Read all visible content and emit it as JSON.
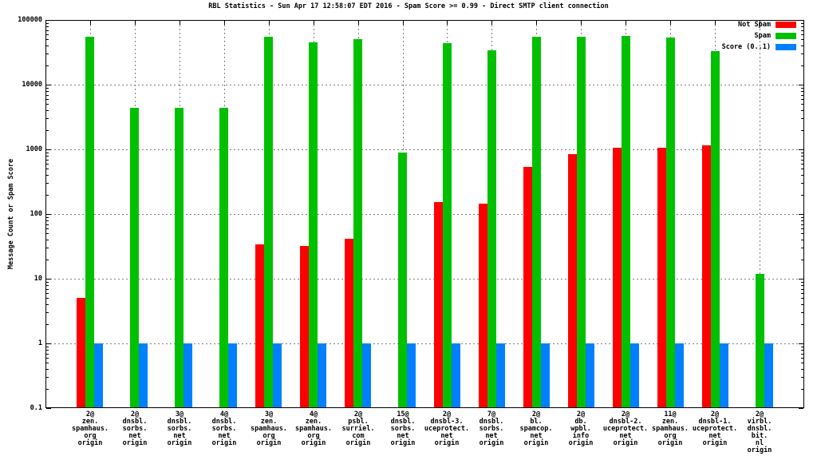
{
  "title": "RBL Statistics - Sun Apr 17 12:58:07 EDT 2016 - Spam Score >= 0.99 - Direct SMTP client connection",
  "chart_data": {
    "type": "bar",
    "y_scale": "log",
    "title": "RBL Statistics - Sun Apr 17 12:58:07 EDT 2016 - Spam Score >= 0.99 - Direct SMTP client connection",
    "ylabel": "Message Count or Spam Score",
    "xlabel": "",
    "ylim": [
      0.1,
      100000
    ],
    "ytick_labels": [
      "100000",
      "10000",
      "1000",
      "100",
      "10",
      "1",
      "0.1"
    ],
    "grid": true,
    "legend_position": "top-right-inside",
    "categories": [
      [
        "2@",
        "zen.",
        "spamhaus.",
        "org",
        "origin"
      ],
      [
        "2@",
        "dnsbl.",
        "sorbs.",
        "net",
        "origin"
      ],
      [
        "3@",
        "dnsbl.",
        "sorbs.",
        "net",
        "origin"
      ],
      [
        "4@",
        "dnsbl.",
        "sorbs.",
        "net",
        "origin"
      ],
      [
        "3@",
        "zen.",
        "spamhaus.",
        "org",
        "origin"
      ],
      [
        "4@",
        "zen.",
        "spamhaus.",
        "org",
        "origin"
      ],
      [
        "2@",
        "psbl.",
        "surriel.",
        "com",
        "origin"
      ],
      [
        "15@",
        "dnsbl.",
        "sorbs.",
        "net",
        "origin"
      ],
      [
        "2@",
        "dnsbl-3.",
        "uceprotect.",
        "net",
        "origin"
      ],
      [
        "7@",
        "dnsbl.",
        "sorbs.",
        "net",
        "origin"
      ],
      [
        "2@",
        "bl.",
        "spamcop.",
        "net",
        "origin"
      ],
      [
        "2@",
        "db.",
        "wpbl.",
        "info",
        "origin"
      ],
      [
        "2@",
        "dnsbl-2.",
        "uceprotect.",
        "net",
        "origin"
      ],
      [
        "11@",
        "zen.",
        "spamhaus.",
        "org",
        "origin"
      ],
      [
        "2@",
        "dnsbl-1.",
        "uceprotect.",
        "net",
        "origin"
      ],
      [
        "2@",
        "virbl.",
        "dnsbl.",
        "bit.",
        "nl",
        "origin"
      ]
    ],
    "series": [
      {
        "name": "Not Spam",
        "color": "#ff0000",
        "values": [
          5,
          null,
          null,
          null,
          34,
          32,
          42,
          null,
          155,
          145,
          530,
          840,
          1050,
          1050,
          1150,
          null
        ]
      },
      {
        "name": "Spam",
        "color": "#00c000",
        "values": [
          55000,
          4400,
          4400,
          4400,
          55000,
          45000,
          51000,
          900,
          44000,
          34000,
          55000,
          55000,
          57000,
          54000,
          33000,
          12
        ]
      },
      {
        "name": "Score (0..1)",
        "color": "#0080ff",
        "values": [
          1,
          1,
          1,
          1,
          1,
          1,
          1,
          1,
          1,
          1,
          1,
          1,
          1,
          1,
          1,
          1
        ]
      }
    ],
    "colors": {
      "axis": "#000000",
      "grid": "#7f7f7f",
      "background": "#ffffff"
    }
  }
}
